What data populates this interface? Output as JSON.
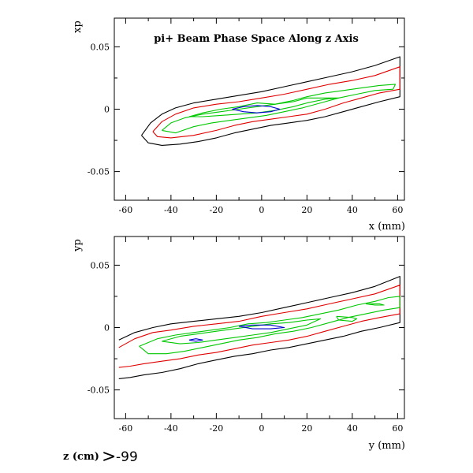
{
  "title": "pi+ Beam Phase Space Along z Axis",
  "footer": {
    "label": "z (cm)",
    "operator": ">",
    "value": "-99"
  },
  "colors": {
    "level1": "#000000",
    "level2": "#e00000",
    "level3": "#00c800",
    "level4": "#0000d0"
  },
  "chart_data": [
    {
      "type": "contour",
      "xlabel": "x (mm)",
      "ylabel": "xp",
      "xlim": [
        -65,
        63
      ],
      "ylim": [
        -0.073,
        0.073
      ],
      "xticks": [
        -60,
        -40,
        -20,
        0,
        20,
        40,
        60
      ],
      "yticks": [
        -0.05,
        0,
        0.05
      ],
      "ytick_labels": [
        "-0.05",
        "0",
        "0.05"
      ],
      "contours": [
        {
          "level": 1,
          "color": "#000000",
          "points": [
            [
              -53,
              -0.021
            ],
            [
              -49,
              -0.011
            ],
            [
              -44,
              -0.004
            ],
            [
              -38,
              0.001
            ],
            [
              -30,
              0.005
            ],
            [
              -20,
              0.008
            ],
            [
              -10,
              0.011
            ],
            [
              0,
              0.014
            ],
            [
              10,
              0.018
            ],
            [
              20,
              0.022
            ],
            [
              30,
              0.026
            ],
            [
              40,
              0.03
            ],
            [
              50,
              0.035
            ],
            [
              61,
              0.042
            ],
            [
              61,
              0.01
            ],
            [
              52,
              0.006
            ],
            [
              44,
              0.002
            ],
            [
              36,
              -0.002
            ],
            [
              28,
              -0.006
            ],
            [
              20,
              -0.009
            ],
            [
              12,
              -0.011
            ],
            [
              4,
              -0.013
            ],
            [
              -4,
              -0.016
            ],
            [
              -12,
              -0.019
            ],
            [
              -20,
              -0.023
            ],
            [
              -28,
              -0.026
            ],
            [
              -36,
              -0.028
            ],
            [
              -44,
              -0.029
            ],
            [
              -50,
              -0.027
            ],
            [
              -53,
              -0.021
            ]
          ]
        },
        {
          "level": 2,
          "color": "#e00000",
          "points": [
            [
              -48,
              -0.018
            ],
            [
              -44,
              -0.01
            ],
            [
              -38,
              -0.004
            ],
            [
              -30,
              0.001
            ],
            [
              -20,
              0.004
            ],
            [
              -10,
              0.006
            ],
            [
              0,
              0.009
            ],
            [
              10,
              0.012
            ],
            [
              20,
              0.016
            ],
            [
              30,
              0.02
            ],
            [
              40,
              0.023
            ],
            [
              50,
              0.027
            ],
            [
              61,
              0.034
            ],
            [
              61,
              0.016
            ],
            [
              52,
              0.013
            ],
            [
              44,
              0.009
            ],
            [
              36,
              0.005
            ],
            [
              28,
              0.0
            ],
            [
              20,
              -0.004
            ],
            [
              12,
              -0.006
            ],
            [
              4,
              -0.008
            ],
            [
              -4,
              -0.01
            ],
            [
              -12,
              -0.013
            ],
            [
              -20,
              -0.017
            ],
            [
              -30,
              -0.021
            ],
            [
              -40,
              -0.023
            ],
            [
              -46,
              -0.022
            ],
            [
              -48,
              -0.018
            ]
          ]
        },
        {
          "level": 3,
          "color": "#00c800",
          "points": [
            [
              -44,
              -0.017
            ],
            [
              -40,
              -0.011
            ],
            [
              -34,
              -0.007
            ],
            [
              -26,
              -0.004
            ],
            [
              -18,
              -0.002
            ],
            [
              -10,
              0.0
            ],
            [
              -2,
              0.002
            ],
            [
              6,
              0.004
            ],
            [
              14,
              0.007
            ],
            [
              20,
              0.01
            ],
            [
              28,
              0.013
            ],
            [
              36,
              0.015
            ],
            [
              44,
              0.017
            ],
            [
              52,
              0.019
            ],
            [
              59,
              0.02
            ],
            [
              58,
              0.016
            ],
            [
              50,
              0.015
            ],
            [
              42,
              0.012
            ],
            [
              34,
              0.009
            ],
            [
              26,
              0.005
            ],
            [
              18,
              0.001
            ],
            [
              10,
              -0.002
            ],
            [
              2,
              -0.005
            ],
            [
              -6,
              -0.007
            ],
            [
              -14,
              -0.009
            ],
            [
              -22,
              -0.011
            ],
            [
              -30,
              -0.014
            ],
            [
              -38,
              -0.019
            ],
            [
              -44,
              -0.017
            ]
          ]
        },
        {
          "level": 3,
          "color": "#00c800",
          "points": [
            [
              -32,
              -0.006
            ],
            [
              -26,
              -0.003
            ],
            [
              -18,
              0.0
            ],
            [
              -10,
              0.002
            ],
            [
              -2,
              0.005
            ],
            [
              6,
              0.004
            ],
            [
              14,
              0.006
            ],
            [
              20,
              0.009
            ],
            [
              28,
              0.009
            ],
            [
              34,
              0.009
            ],
            [
              28,
              0.008
            ],
            [
              20,
              0.005
            ],
            [
              14,
              0.002
            ],
            [
              6,
              -0.001
            ],
            [
              -2,
              -0.003
            ],
            [
              -10,
              -0.004
            ],
            [
              -18,
              -0.005
            ],
            [
              -26,
              -0.006
            ],
            [
              -32,
              -0.006
            ]
          ]
        },
        {
          "level": 4,
          "color": "#0000d0",
          "points": [
            [
              -13,
              0.0
            ],
            [
              -8,
              0.002
            ],
            [
              -2,
              0.003
            ],
            [
              4,
              0.002
            ],
            [
              8,
              0.0
            ],
            [
              4,
              -0.002
            ],
            [
              -2,
              -0.003
            ],
            [
              -8,
              -0.002
            ],
            [
              -13,
              0.0
            ]
          ]
        }
      ]
    },
    {
      "type": "contour",
      "xlabel": "y (mm)",
      "ylabel": "yp",
      "xlim": [
        -65,
        63
      ],
      "ylim": [
        -0.073,
        0.073
      ],
      "xticks": [
        -60,
        -40,
        -20,
        0,
        20,
        40,
        60
      ],
      "yticks": [
        -0.05,
        0,
        0.05
      ],
      "ytick_labels": [
        "-0.05",
        "0",
        "0.05"
      ],
      "contours": [
        {
          "level": 1,
          "color": "#000000",
          "points": [
            [
              -63,
              -0.01
            ],
            [
              -56,
              -0.004
            ],
            [
              -48,
              0.0
            ],
            [
              -40,
              0.003
            ],
            [
              -30,
              0.005
            ],
            [
              -20,
              0.007
            ],
            [
              -10,
              0.009
            ],
            [
              0,
              0.012
            ],
            [
              10,
              0.016
            ],
            [
              20,
              0.02
            ],
            [
              30,
              0.024
            ],
            [
              40,
              0.028
            ],
            [
              50,
              0.033
            ],
            [
              61,
              0.041
            ],
            [
              61,
              0.004
            ],
            [
              52,
              0.0
            ],
            [
              44,
              -0.003
            ],
            [
              36,
              -0.007
            ],
            [
              28,
              -0.01
            ],
            [
              20,
              -0.013
            ],
            [
              12,
              -0.016
            ],
            [
              4,
              -0.018
            ],
            [
              -4,
              -0.021
            ],
            [
              -12,
              -0.023
            ],
            [
              -20,
              -0.026
            ],
            [
              -28,
              -0.029
            ],
            [
              -36,
              -0.033
            ],
            [
              -44,
              -0.036
            ],
            [
              -52,
              -0.038
            ],
            [
              -58,
              -0.04
            ],
            [
              -63,
              -0.041
            ]
          ]
        },
        {
          "level": 2,
          "color": "#e00000",
          "points": [
            [
              -63,
              -0.016
            ],
            [
              -56,
              -0.009
            ],
            [
              -48,
              -0.004
            ],
            [
              -40,
              -0.002
            ],
            [
              -30,
              0.001
            ],
            [
              -20,
              0.003
            ],
            [
              -10,
              0.005
            ],
            [
              0,
              0.009
            ],
            [
              10,
              0.012
            ],
            [
              20,
              0.015
            ],
            [
              30,
              0.019
            ],
            [
              40,
              0.023
            ],
            [
              50,
              0.027
            ],
            [
              61,
              0.034
            ],
            [
              61,
              0.011
            ],
            [
              52,
              0.008
            ],
            [
              44,
              0.005
            ],
            [
              36,
              0.001
            ],
            [
              28,
              -0.003
            ],
            [
              20,
              -0.007
            ],
            [
              12,
              -0.01
            ],
            [
              4,
              -0.012
            ],
            [
              -4,
              -0.014
            ],
            [
              -12,
              -0.017
            ],
            [
              -20,
              -0.02
            ],
            [
              -28,
              -0.022
            ],
            [
              -36,
              -0.025
            ],
            [
              -44,
              -0.027
            ],
            [
              -52,
              -0.029
            ],
            [
              -58,
              -0.031
            ],
            [
              -63,
              -0.032
            ]
          ]
        },
        {
          "level": 3,
          "color": "#00c800",
          "points": [
            [
              -54,
              -0.015
            ],
            [
              -46,
              -0.009
            ],
            [
              -38,
              -0.006
            ],
            [
              -30,
              -0.004
            ],
            [
              -22,
              -0.002
            ],
            [
              -14,
              0.0
            ],
            [
              -6,
              0.003
            ],
            [
              2,
              0.004
            ],
            [
              10,
              0.006
            ],
            [
              18,
              0.008
            ],
            [
              26,
              0.011
            ],
            [
              34,
              0.014
            ],
            [
              42,
              0.018
            ],
            [
              50,
              0.021
            ],
            [
              56,
              0.024
            ],
            [
              61,
              0.025
            ],
            [
              61,
              0.016
            ],
            [
              54,
              0.014
            ],
            [
              46,
              0.011
            ],
            [
              38,
              0.008
            ],
            [
              30,
              0.004
            ],
            [
              22,
              0.0
            ],
            [
              14,
              -0.003
            ],
            [
              6,
              -0.005
            ],
            [
              -2,
              -0.008
            ],
            [
              -10,
              -0.01
            ],
            [
              -18,
              -0.013
            ],
            [
              -26,
              -0.016
            ],
            [
              -34,
              -0.019
            ],
            [
              -42,
              -0.021
            ],
            [
              -50,
              -0.021
            ],
            [
              -54,
              -0.015
            ]
          ]
        },
        {
          "level": 3,
          "color": "#00c800",
          "points": [
            [
              -44,
              -0.011
            ],
            [
              -36,
              -0.007
            ],
            [
              -28,
              -0.005
            ],
            [
              -20,
              -0.003
            ],
            [
              -12,
              -0.001
            ],
            [
              -4,
              0.001
            ],
            [
              4,
              0.003
            ],
            [
              12,
              0.004
            ],
            [
              20,
              0.006
            ],
            [
              26,
              0.007
            ],
            [
              20,
              0.002
            ],
            [
              12,
              -0.001
            ],
            [
              4,
              -0.004
            ],
            [
              -4,
              -0.006
            ],
            [
              -12,
              -0.008
            ],
            [
              -20,
              -0.01
            ],
            [
              -28,
              -0.012
            ],
            [
              -36,
              -0.013
            ],
            [
              -44,
              -0.011
            ]
          ]
        },
        {
          "level": 3,
          "color": "#00c800",
          "points": [
            [
              33,
              0.009
            ],
            [
              40,
              0.008
            ],
            [
              42,
              0.007
            ],
            [
              40,
              0.005
            ],
            [
              34,
              0.006
            ],
            [
              33,
              0.009
            ]
          ]
        },
        {
          "level": 3,
          "color": "#00c800",
          "points": [
            [
              46,
              0.019
            ],
            [
              52,
              0.019
            ],
            [
              54,
              0.018
            ],
            [
              50,
              0.018
            ],
            [
              46,
              0.019
            ]
          ]
        },
        {
          "level": 4,
          "color": "#0000d0",
          "points": [
            [
              -32,
              -0.01
            ],
            [
              -29,
              -0.009
            ],
            [
              -26,
              -0.01
            ],
            [
              -29,
              -0.011
            ],
            [
              -32,
              -0.01
            ]
          ]
        },
        {
          "level": 4,
          "color": "#0000d0",
          "points": [
            [
              -10,
              0.001
            ],
            [
              -4,
              0.002
            ],
            [
              4,
              0.002
            ],
            [
              10,
              0.0
            ],
            [
              4,
              -0.001
            ],
            [
              -4,
              -0.001
            ],
            [
              -10,
              0.001
            ]
          ]
        }
      ]
    }
  ]
}
